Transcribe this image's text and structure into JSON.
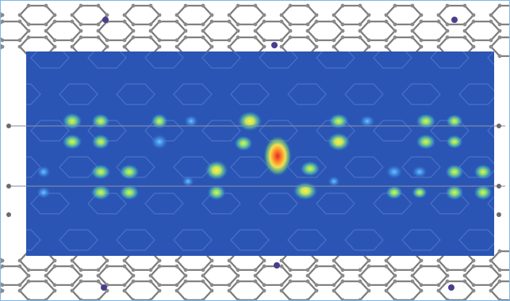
{
  "image": {
    "colors": {
      "frame_border": "#7fb7e6",
      "background": "#ffffff",
      "bond": "#7a7a7a",
      "atom": "#8a8a8a",
      "nitrogen_atom": "#4a3d8f",
      "map_base": "#2b55b4",
      "spot_low": "#5aa0ff",
      "spot_mid": "#9ee66a",
      "spot_high": "#ffe84a",
      "spot_peak": "#e83b2b"
    }
  }
}
